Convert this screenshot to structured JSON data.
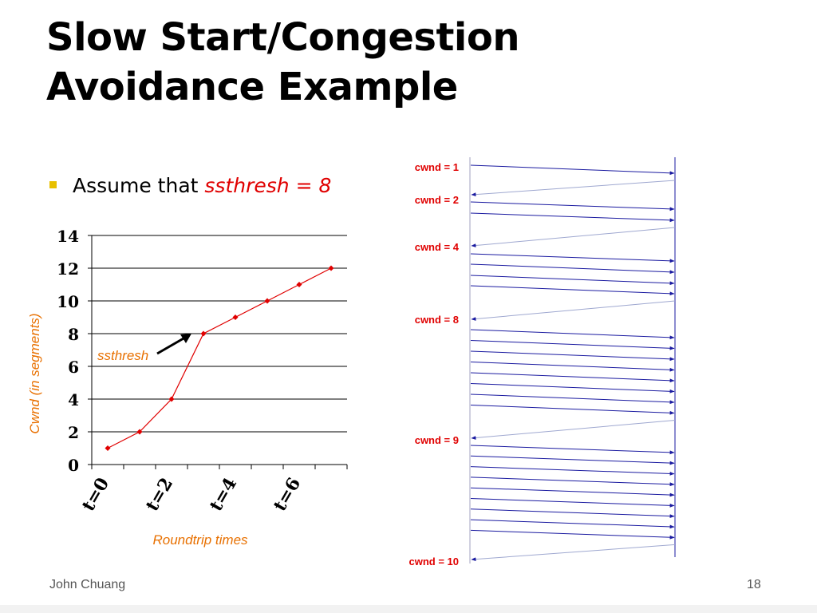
{
  "slide": {
    "title_line1": "Slow Start/Congestion",
    "title_line2": "Avoidance Example",
    "bullet_prefix": "Assume that ",
    "bullet_highlight": "ssthresh = 8",
    "footer_author": "John Chuang",
    "page_number": "18"
  },
  "colors": {
    "series": "#e00000",
    "axis_title": "#e87000",
    "annotation": "#e87000",
    "timeline": "#1a1aa0",
    "cwnd_label": "#e00000",
    "bullet": "#e8c000"
  },
  "chart_data": [
    {
      "type": "line",
      "title": "",
      "xlabel": "Roundtrip times",
      "ylabel": "Cwnd (in segments)",
      "ylim": [
        0,
        14
      ],
      "yticks": [
        0,
        2,
        4,
        6,
        8,
        10,
        12,
        14
      ],
      "xticks": [
        "t=0",
        "t=2",
        "t=4",
        "t=6"
      ],
      "grid": true,
      "annotation": "ssthresh",
      "series": [
        {
          "x": [
            0,
            1,
            2,
            3,
            4,
            5,
            6,
            7
          ],
          "values": [
            1,
            2,
            4,
            8,
            9,
            10,
            11,
            12
          ]
        }
      ]
    },
    {
      "type": "diagram",
      "cwnd_labels": [
        "cwnd = 1",
        "cwnd = 2",
        "cwnd = 4",
        "cwnd = 8",
        "cwnd = 9",
        "cwnd = 10"
      ],
      "segments_per_round": [
        1,
        2,
        4,
        8,
        9
      ]
    }
  ]
}
